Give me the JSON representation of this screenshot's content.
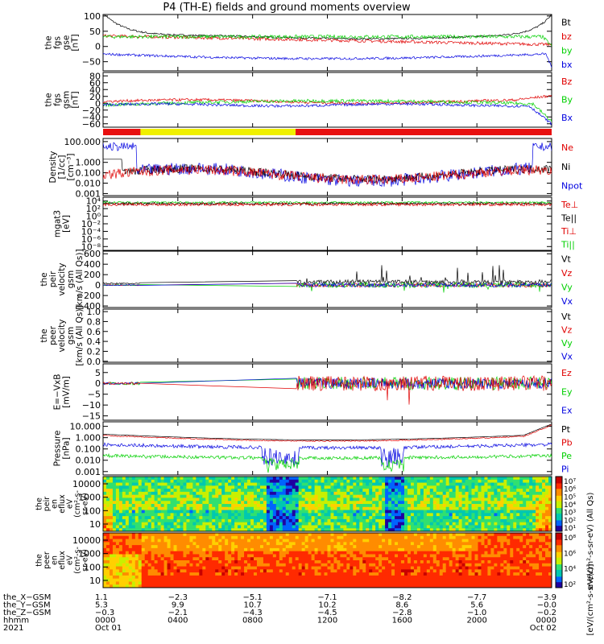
{
  "title": "P4 (TH-E) fields and ground moments overview",
  "colors": {
    "black": "#000000",
    "red": "#e00000",
    "green": "#00d000",
    "blue": "#0000e0",
    "yellow": "#f0f000",
    "barRed": "#e81010"
  },
  "panels": [
    {
      "id": "fgs-gse",
      "ylabel": [
        "the",
        "fgs",
        "gse",
        "[nT]"
      ],
      "ticks": [
        {
          "v": 100,
          "t": "100"
        },
        {
          "v": 50,
          "t": "50"
        },
        {
          "v": 0,
          "t": "0"
        },
        {
          "v": -50,
          "t": "−50"
        }
      ],
      "ylim": [
        -80,
        105
      ],
      "legend": [
        {
          "t": "Bt",
          "c": "black"
        },
        {
          "t": "bz",
          "c": "red"
        },
        {
          "t": "by",
          "c": "green"
        },
        {
          "t": "bx",
          "c": "blue"
        }
      ]
    },
    {
      "id": "fgs-gsm",
      "ylabel": [
        "the",
        "fgs",
        "gsm",
        "[nT]"
      ],
      "ticks": [
        {
          "v": 80,
          "t": "80"
        },
        {
          "v": 60,
          "t": "60"
        },
        {
          "v": 40,
          "t": "40"
        },
        {
          "v": 20,
          "t": "20"
        },
        {
          "v": 0,
          "t": "0"
        },
        {
          "v": -20,
          "t": "−20"
        },
        {
          "v": -40,
          "t": "−40"
        },
        {
          "v": -60,
          "t": "−60"
        }
      ],
      "ylim": [
        -70,
        90
      ],
      "legend": [
        {
          "t": "Bz",
          "c": "red"
        },
        {
          "t": "By",
          "c": "green"
        },
        {
          "t": "Bx",
          "c": "blue"
        }
      ]
    },
    {
      "id": "density",
      "ylabel": [
        "Density",
        "[1/cc]",
        "[cm⁻³]"
      ],
      "ticks": [
        {
          "v": 5,
          "t": "100.000"
        },
        {
          "v": 3,
          "t": "1.000"
        },
        {
          "v": 2,
          "t": "0.100"
        },
        {
          "v": 1,
          "t": "0.010"
        },
        {
          "v": 0,
          "t": "0.001"
        }
      ],
      "ylim": [
        -0.2,
        5.3
      ],
      "legend": [
        {
          "t": "Ne",
          "c": "red"
        },
        {
          "t": "Ni",
          "c": "black"
        },
        {
          "t": "Npot",
          "c": "blue"
        }
      ]
    },
    {
      "id": "temperature",
      "ylabel": [
        "mgat3",
        "[eV]"
      ],
      "ticks": [
        {
          "v": 4,
          "t": "10⁴"
        },
        {
          "v": 2,
          "t": "10²"
        },
        {
          "v": 0,
          "t": "10⁰"
        },
        {
          "v": -2,
          "t": "10⁻²"
        },
        {
          "v": -4,
          "t": "10⁻⁴"
        },
        {
          "v": -6,
          "t": "10⁻⁶"
        },
        {
          "v": -8,
          "t": "10⁻⁸"
        }
      ],
      "ylim": [
        -9,
        5
      ],
      "legend": [
        {
          "t": "Te⊥",
          "c": "red"
        },
        {
          "t": "Te||",
          "c": "black"
        },
        {
          "t": "Ti⊥",
          "c": "red"
        },
        {
          "t": "Ti||",
          "c": "green"
        }
      ]
    },
    {
      "id": "peir-velocity",
      "ylabel": [
        "the",
        "peir",
        "velocity",
        "gsm",
        "[km/s (All Qs)]"
      ],
      "ticks": [
        {
          "v": 600,
          "t": "600"
        },
        {
          "v": 400,
          "t": "400"
        },
        {
          "v": 200,
          "t": "200"
        },
        {
          "v": 0,
          "t": "0"
        },
        {
          "v": -200,
          "t": "−200"
        },
        {
          "v": -400,
          "t": "−400"
        }
      ],
      "ylim": [
        -430,
        650
      ],
      "legend": [
        {
          "t": "Vt",
          "c": "black"
        },
        {
          "t": "Vz",
          "c": "red"
        },
        {
          "t": "Vy",
          "c": "green"
        },
        {
          "t": "Vx",
          "c": "blue"
        }
      ]
    },
    {
      "id": "peer-velocity",
      "ylabel": [
        "the",
        "peer",
        "velocity",
        "gsm",
        "[km/s (All Qs)]"
      ],
      "ticks": [
        {
          "v": 1.0,
          "t": "1.0"
        },
        {
          "v": 0.8,
          "t": "0.8"
        },
        {
          "v": 0.6,
          "t": "0.6"
        },
        {
          "v": 0.4,
          "t": "0.4"
        },
        {
          "v": 0.2,
          "t": "0.2"
        },
        {
          "v": 0.0,
          "t": "0.0"
        }
      ],
      "ylim": [
        -0.02,
        1.05
      ],
      "legend": [
        {
          "t": "Vt",
          "c": "black"
        },
        {
          "t": "Vz",
          "c": "red"
        },
        {
          "t": "Vy",
          "c": "green"
        },
        {
          "t": "Vx",
          "c": "blue"
        }
      ]
    },
    {
      "id": "efield",
      "ylabel": [
        "E=−VxB",
        "[mV/m]"
      ],
      "ticks": [
        {
          "v": 5,
          "t": "5"
        },
        {
          "v": 0,
          "t": "0"
        },
        {
          "v": -5,
          "t": "−5"
        },
        {
          "v": -10,
          "t": "−10"
        },
        {
          "v": -15,
          "t": "−15"
        }
      ],
      "ylim": [
        -17,
        9
      ],
      "legend": [
        {
          "t": "Ez",
          "c": "red"
        },
        {
          "t": "Ey",
          "c": "green"
        },
        {
          "t": "Ex",
          "c": "blue"
        }
      ]
    },
    {
      "id": "pressure",
      "ylabel": [
        "Pressure",
        "[nPa]"
      ],
      "ticks": [
        {
          "v": 4,
          "t": "10.000"
        },
        {
          "v": 3,
          "t": "1.000"
        },
        {
          "v": 2,
          "t": "0.100"
        },
        {
          "v": 1,
          "t": "0.010"
        },
        {
          "v": 0,
          "t": "0.001"
        }
      ],
      "ylim": [
        -0.3,
        4.4
      ],
      "legend": [
        {
          "t": "Pt",
          "c": "black"
        },
        {
          "t": "Pb",
          "c": "red"
        },
        {
          "t": "Pe",
          "c": "green"
        },
        {
          "t": "Pi",
          "c": "blue"
        }
      ]
    }
  ],
  "spectrograms": [
    {
      "id": "peir-spec",
      "ylabel": [
        "the",
        "peir",
        "en",
        "eflux",
        "eV",
        "(cm²-s-",
        "sr-eV)"
      ],
      "ticks": [
        "10000",
        "1000",
        "100",
        "10"
      ],
      "colorbar": [
        "10⁷",
        "10⁶",
        "10⁵",
        "10⁴",
        "10³",
        "10²",
        "10¹"
      ]
    },
    {
      "id": "peer-spec",
      "ylabel": [
        "the",
        "peer",
        "en",
        "eflux",
        "eV",
        "(cm²-s-",
        "sr-eV)"
      ],
      "ticks": [
        "10000",
        "1000",
        "100",
        "10"
      ],
      "colorbar": [
        "10⁸",
        "10⁶",
        "10⁴",
        "10²"
      ]
    }
  ],
  "colorbar_title_1": "eV/(cm²-s-sr-eV) (All Qs)",
  "colorbar_title_2": "[eV/(cm²-s-sr-eV)]",
  "status_bar": [
    {
      "from": 0,
      "to": 2.0,
      "c": "barRed"
    },
    {
      "from": 2.0,
      "to": 10.3,
      "c": "yellow"
    },
    {
      "from": 10.3,
      "to": 24,
      "c": "barRed"
    }
  ],
  "footer": {
    "rows": [
      {
        "label": "the_X−GSM",
        "values": [
          "1.1",
          "−2.3",
          "−5.1",
          "−7.1",
          "−8.2",
          "−7.7",
          "−3.9"
        ]
      },
      {
        "label": "the_Y−GSM",
        "values": [
          "5.3",
          "9.9",
          "10.7",
          "10.2",
          "8.6",
          "5.6",
          "−0.0"
        ]
      },
      {
        "label": "the_Z−GSM",
        "values": [
          "−0.3",
          "−2.1",
          "−4.3",
          "−4.5",
          "−2.8",
          "−1.0",
          "−0.2"
        ]
      },
      {
        "label": "hhmm",
        "values": [
          "0000",
          "0400",
          "0800",
          "1200",
          "1600",
          "2000",
          "0000"
        ]
      },
      {
        "label": "2021",
        "values": [
          "Oct 01",
          "",
          "",
          "",
          "",
          "",
          "Oct 02"
        ]
      }
    ]
  }
}
